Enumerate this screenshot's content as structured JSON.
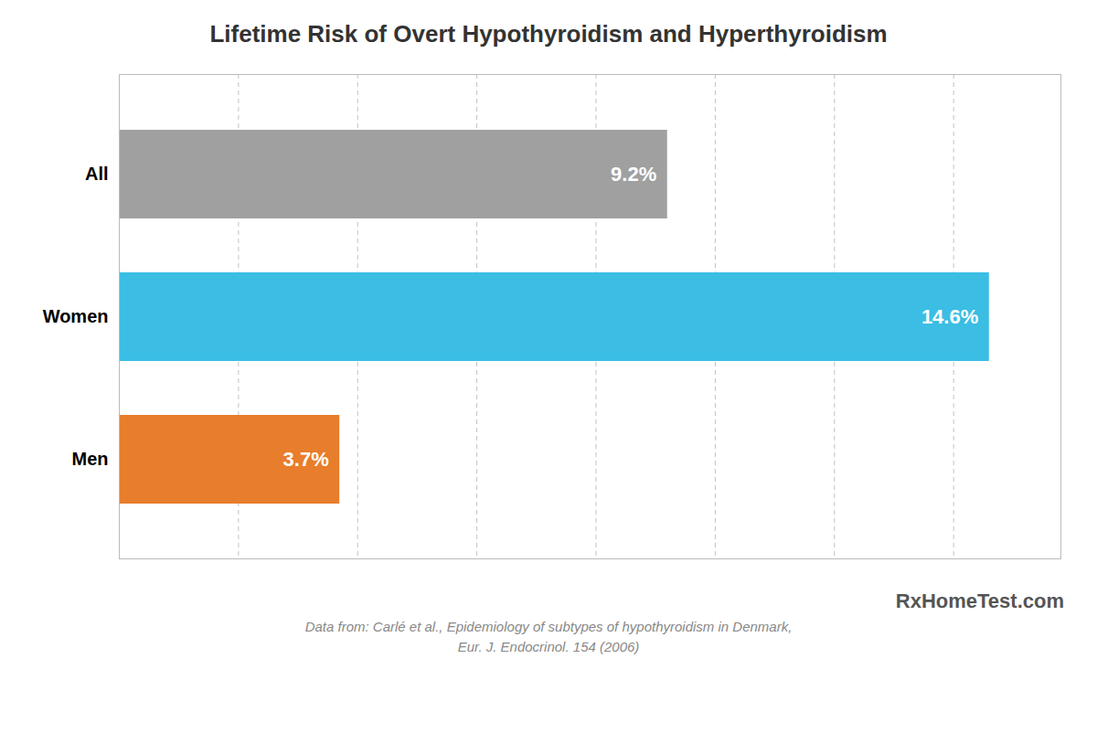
{
  "chart_data": {
    "type": "bar",
    "orientation": "horizontal",
    "title": "Lifetime Risk of Overt Hypothyroidism and Hyperthyroidism",
    "categories": [
      "All",
      "Women",
      "Men"
    ],
    "values": [
      9.2,
      14.6,
      3.7
    ],
    "value_labels": [
      "9.2%",
      "14.6%",
      "3.7%"
    ],
    "data_labels": true,
    "colors": [
      "#a0a0a0",
      "#3bbde4",
      "#e87d2b"
    ],
    "xlim": [
      0,
      15.8
    ],
    "xticks": [
      0,
      2,
      4,
      6,
      8,
      10,
      12,
      14
    ],
    "grid": true,
    "tick_labels": "y",
    "annotations": [
      "RxHomeTest.com",
      "Data from: Carlé et al., Epidemiology of subtypes of hypothyroidism in Denmark,",
      "Eur. J. Endocrinol. 154 (2006)"
    ]
  }
}
